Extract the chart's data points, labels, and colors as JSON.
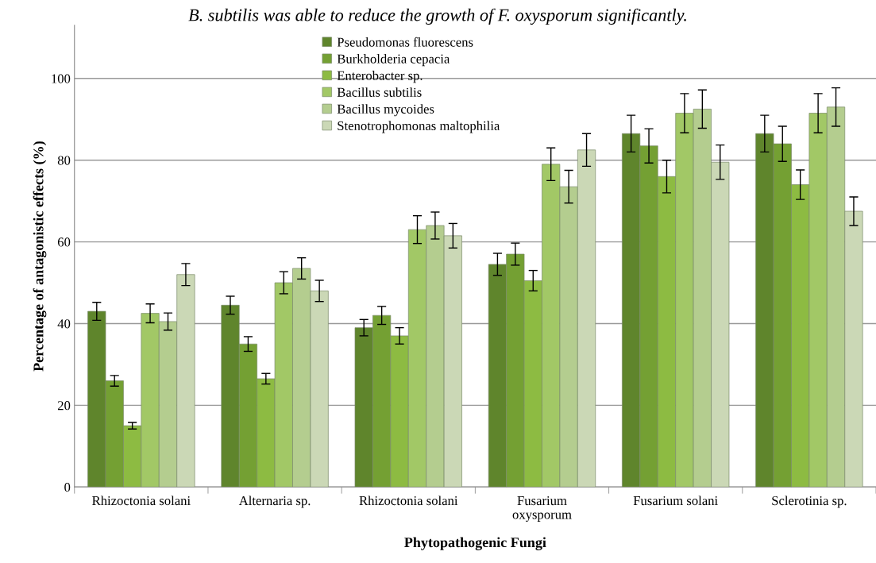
{
  "chart_data": {
    "type": "bar",
    "title": "B. subtilis was able to reduce the growth of F. oxysporum significantly.",
    "xlabel": "Phytopathogenic Fungi",
    "ylabel": "Percentage of antagonistic effects (%)",
    "categories": [
      "Rhizoctonia solani",
      "Alternaria sp.",
      "Rhizoctonia solani",
      "Fusarium\noxysporum",
      "Fusarium solani",
      "Sclerotinia sp."
    ],
    "series": [
      {
        "name": "Pseudomonas fluorescens",
        "color": "#5f852c",
        "values": [
          43,
          44.5,
          39,
          54.5,
          86.5,
          86.5
        ],
        "errors": [
          2.2,
          2.2,
          2,
          2.7,
          4.5,
          4.5
        ]
      },
      {
        "name": "Burkholderia cepacia",
        "color": "#74a033",
        "values": [
          26,
          35,
          42,
          57,
          83.5,
          84
        ],
        "errors": [
          1.3,
          1.8,
          2.2,
          2.7,
          4.2,
          4.3
        ]
      },
      {
        "name": "Enterobacter sp.",
        "color": "#8dbb42",
        "values": [
          15,
          26.5,
          37,
          50.5,
          76,
          74
        ],
        "errors": [
          0.8,
          1.3,
          2,
          2.5,
          4,
          3.6
        ]
      },
      {
        "name": "Bacillus subtilis",
        "color": "#a2c866",
        "values": [
          42.5,
          50,
          63,
          79,
          91.5,
          91.5
        ],
        "errors": [
          2.3,
          2.7,
          3.4,
          4,
          4.8,
          4.8
        ]
      },
      {
        "name": "Bacillus mycoides",
        "color": "#b4cd8f",
        "values": [
          40.5,
          53.5,
          64,
          73.5,
          92.5,
          93
        ],
        "errors": [
          2.1,
          2.6,
          3.3,
          4,
          4.7,
          4.7
        ]
      },
      {
        "name": "Stenotrophomonas maltophilia",
        "color": "#cbd8b6",
        "values": [
          52,
          48,
          61.5,
          82.5,
          79.5,
          67.5
        ],
        "errors": [
          2.7,
          2.6,
          3,
          4,
          4.2,
          3.5
        ]
      }
    ],
    "ylim": [
      0,
      113
    ],
    "yticks": [
      0,
      20,
      40,
      60,
      80,
      100
    ],
    "grid": "y",
    "legend": "top"
  }
}
